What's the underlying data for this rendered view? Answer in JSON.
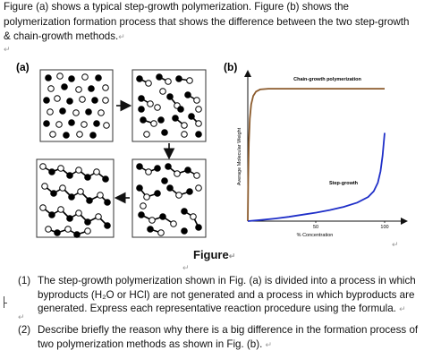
{
  "intro": {
    "text": "Figure (a) shows a typical step-growth polymerization. Figure (b) shows the polymerization formation process that shows the difference between the two step-growth & chain-growth methods.",
    "mark": "↵"
  },
  "figure_a": {
    "label": "(a)"
  },
  "figure_b": {
    "label": "(b)",
    "ylabel": "Average Molecular Weight",
    "xlabel": "% Concentration",
    "chain_label": "Chain-growth polymerization",
    "step_label": "Step-growth",
    "xticks": [
      "50",
      "100"
    ]
  },
  "chart_data": {
    "type": "line",
    "xlabel": "% Concentration",
    "ylabel": "Average Molecular Weight",
    "xlim": [
      0,
      100
    ],
    "xticks": [
      50,
      100
    ],
    "series": [
      {
        "name": "Chain-growth polymerization",
        "x": [
          0,
          0.3,
          0.8,
          1.5,
          2.5,
          4,
          6,
          9,
          15,
          30,
          50,
          75,
          100
        ],
        "y": [
          0,
          30,
          55,
          72,
          82,
          88,
          91,
          92.5,
          93,
          93,
          93,
          93,
          93
        ]
      },
      {
        "name": "Step-growth",
        "x": [
          0,
          10,
          20,
          30,
          40,
          50,
          60,
          70,
          80,
          88,
          92,
          95,
          97,
          98.5,
          100
        ],
        "y": [
          0,
          0.8,
          1.8,
          3,
          4.5,
          6,
          7.8,
          10,
          13,
          17,
          21,
          27,
          35,
          46,
          62
        ]
      }
    ]
  },
  "caption": "Figure",
  "questions": [
    {
      "num": "(1)",
      "text": "The step-growth polymerization shown in Fig. (a) is divided into a process in which byproducts (H₂O or HCl) are not generated and a process in which byproducts are generated. Express each representative reaction procedure using the formula."
    },
    {
      "num": "(2)",
      "text": "Describe briefly the reason why there is a big difference in the formation process of two polymerization methods as shown in Fig. (b)."
    }
  ],
  "marks": {
    "ret": "↵"
  }
}
